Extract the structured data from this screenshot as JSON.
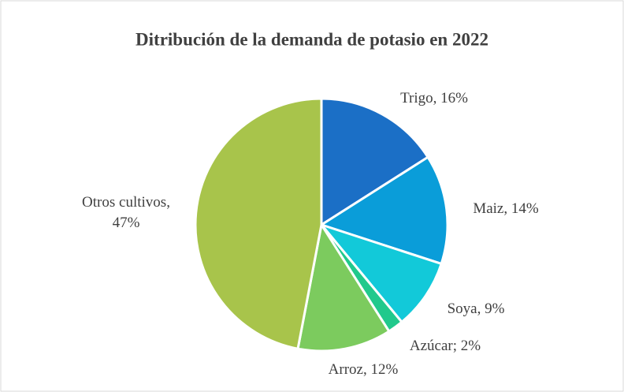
{
  "chart_data": {
    "type": "pie",
    "title": "Ditribución de la demanda de potasio en 2022",
    "categories": [
      "Trigo",
      "Maiz",
      "Soya",
      "Azúcar",
      "Arroz",
      "Otros cultivos"
    ],
    "values": [
      16,
      14,
      9,
      2,
      12,
      47
    ],
    "value_labels": [
      ", 16%",
      ", 14%",
      ", 9%",
      "; 2%",
      ", 12%",
      ",\n47%"
    ],
    "colors": [
      "#1b6fc6",
      "#0a9dd9",
      "#12c9d9",
      "#21c98c",
      "#7ccb5e",
      "#a8c44b"
    ]
  }
}
